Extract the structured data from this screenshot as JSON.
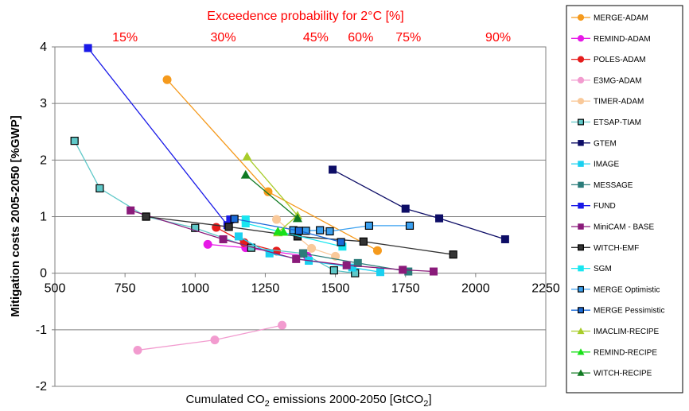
{
  "chart_data": {
    "type": "line",
    "title": "",
    "top_axis_label": "Exceedence probability for 2°C [%]",
    "top_ticks": [
      {
        "label": "15%",
        "x": 750
      },
      {
        "label": "30%",
        "x": 1100
      },
      {
        "label": "45%",
        "x": 1430
      },
      {
        "label": "60%",
        "x": 1590
      },
      {
        "label": "75%",
        "x": 1760
      },
      {
        "label": "90%",
        "x": 2080
      }
    ],
    "xlabel": "Cumulated CO2 emissions 2000-2050 [GtCO2]",
    "xlabel_main": "Cumulated CO",
    "xlabel_sub": "2",
    "xlabel_mid": " emissions 2000-2050 [GtCO",
    "xlabel_sub2": "2",
    "xlabel_end": "]",
    "ylabel": "Mitigation costs 2005-2050 [%GWP]",
    "xlim": [
      500,
      2250
    ],
    "ylim": [
      -2,
      4
    ],
    "xticks": [
      "500",
      "750",
      "1000",
      "1250",
      "1500",
      "1750",
      "2000",
      "2250"
    ],
    "yticks": [
      "-2",
      "-1",
      "0",
      "1",
      "2",
      "3",
      "4"
    ],
    "grid": "horizontal",
    "legend_position": "right",
    "series": [
      {
        "name": "MERGE-ADAM",
        "color": "#f59a1d",
        "marker": "circle",
        "points": [
          [
            900,
            3.42
          ],
          [
            1260,
            1.44
          ],
          [
            1650,
            0.4
          ]
        ]
      },
      {
        "name": "REMIND-ADAM",
        "color": "#e619e6",
        "marker": "circle",
        "points": [
          [
            1045,
            0.51
          ],
          [
            1180,
            0.45
          ],
          [
            1400,
            0.3
          ]
        ]
      },
      {
        "name": "POLES-ADAM",
        "color": "#e51c1c",
        "marker": "circle",
        "points": [
          [
            1075,
            0.81
          ],
          [
            1175,
            0.54
          ],
          [
            1290,
            0.39
          ]
        ]
      },
      {
        "name": "E3MG-ADAM",
        "color": "#f29bcf",
        "marker": "circle",
        "points": [
          [
            795,
            -1.36
          ],
          [
            1070,
            -1.18
          ],
          [
            1310,
            -0.92
          ]
        ]
      },
      {
        "name": "TIMER-ADAM",
        "color": "#f9c99a",
        "marker": "circle",
        "points": [
          [
            1290,
            0.95
          ],
          [
            1415,
            0.44
          ],
          [
            1500,
            0.3
          ]
        ]
      },
      {
        "name": "ETSAP-TIAM",
        "color": "#5fc8c8",
        "marker": "square-outline",
        "points": [
          [
            570,
            2.34
          ],
          [
            660,
            1.5
          ],
          [
            825,
            1.0
          ],
          [
            1000,
            0.8
          ],
          [
            1200,
            0.45
          ],
          [
            1385,
            0.35
          ],
          [
            1495,
            0.05
          ],
          [
            1570,
            0.0
          ]
        ]
      },
      {
        "name": "GTEM",
        "color": "#0d0d66",
        "marker": "square",
        "points": [
          [
            1490,
            1.83
          ],
          [
            1750,
            1.14
          ],
          [
            1870,
            0.97
          ],
          [
            2105,
            0.6
          ]
        ]
      },
      {
        "name": "IMAGE",
        "color": "#19d0f0",
        "marker": "square",
        "points": [
          [
            1155,
            0.65
          ],
          [
            1265,
            0.35
          ],
          [
            1405,
            0.22
          ],
          [
            1560,
            0.1
          ],
          [
            1660,
            0.02
          ]
        ]
      },
      {
        "name": "MESSAGE",
        "color": "#2b7c7a",
        "marker": "square",
        "points": [
          [
            1385,
            0.35
          ],
          [
            1580,
            0.18
          ],
          [
            1760,
            0.03
          ]
        ]
      },
      {
        "name": "FUND",
        "color": "#1a1ae8",
        "marker": "square",
        "points": [
          [
            618,
            3.98
          ],
          [
            1115,
            0.85
          ],
          [
            1125,
            0.95
          ]
        ]
      },
      {
        "name": "MiniCAM - BASE",
        "color": "#8a1a7a",
        "marker": "square",
        "points": [
          [
            770,
            1.11
          ],
          [
            1100,
            0.6
          ],
          [
            1360,
            0.25
          ],
          [
            1540,
            0.14
          ],
          [
            1740,
            0.06
          ],
          [
            1850,
            0.03
          ]
        ]
      },
      {
        "name": "WITCH-EMF",
        "color": "#333333",
        "marker": "square-outline",
        "points": [
          [
            825,
            1.0
          ],
          [
            1120,
            0.82
          ],
          [
            1365,
            0.65
          ],
          [
            1600,
            0.56
          ],
          [
            1920,
            0.33
          ]
        ]
      },
      {
        "name": "SGM",
        "color": "#19e6f0",
        "marker": "square",
        "points": [
          [
            1180,
            0.95
          ],
          [
            1180,
            0.88
          ],
          [
            1525,
            0.47
          ]
        ]
      },
      {
        "name": "MERGE Optimistic",
        "color": "#3aa0f0",
        "marker": "square-outline",
        "points": [
          [
            1350,
            0.76
          ],
          [
            1395,
            0.75
          ],
          [
            1445,
            0.76
          ],
          [
            1480,
            0.74
          ],
          [
            1620,
            0.84
          ],
          [
            1765,
            0.84
          ]
        ]
      },
      {
        "name": "MERGE Pessimistic",
        "color": "#1a6ad8",
        "marker": "square-outline",
        "points": [
          [
            1140,
            0.96
          ],
          [
            1370,
            0.75
          ],
          [
            1520,
            0.55
          ]
        ]
      },
      {
        "name": "IMACLIM-RECIPE",
        "color": "#a8cc2a",
        "marker": "triangle",
        "points": [
          [
            1185,
            2.06
          ],
          [
            1365,
            1.02
          ],
          [
            1295,
            0.72
          ]
        ]
      },
      {
        "name": "REMIND-RECIPE",
        "color": "#19e019",
        "marker": "triangle",
        "points": [
          [
            1295,
            0.74
          ],
          [
            1315,
            0.73
          ]
        ]
      },
      {
        "name": "WITCH-RECIPE",
        "color": "#107a22",
        "marker": "triangle",
        "points": [
          [
            1180,
            1.74
          ],
          [
            1365,
            0.97
          ]
        ]
      }
    ]
  }
}
